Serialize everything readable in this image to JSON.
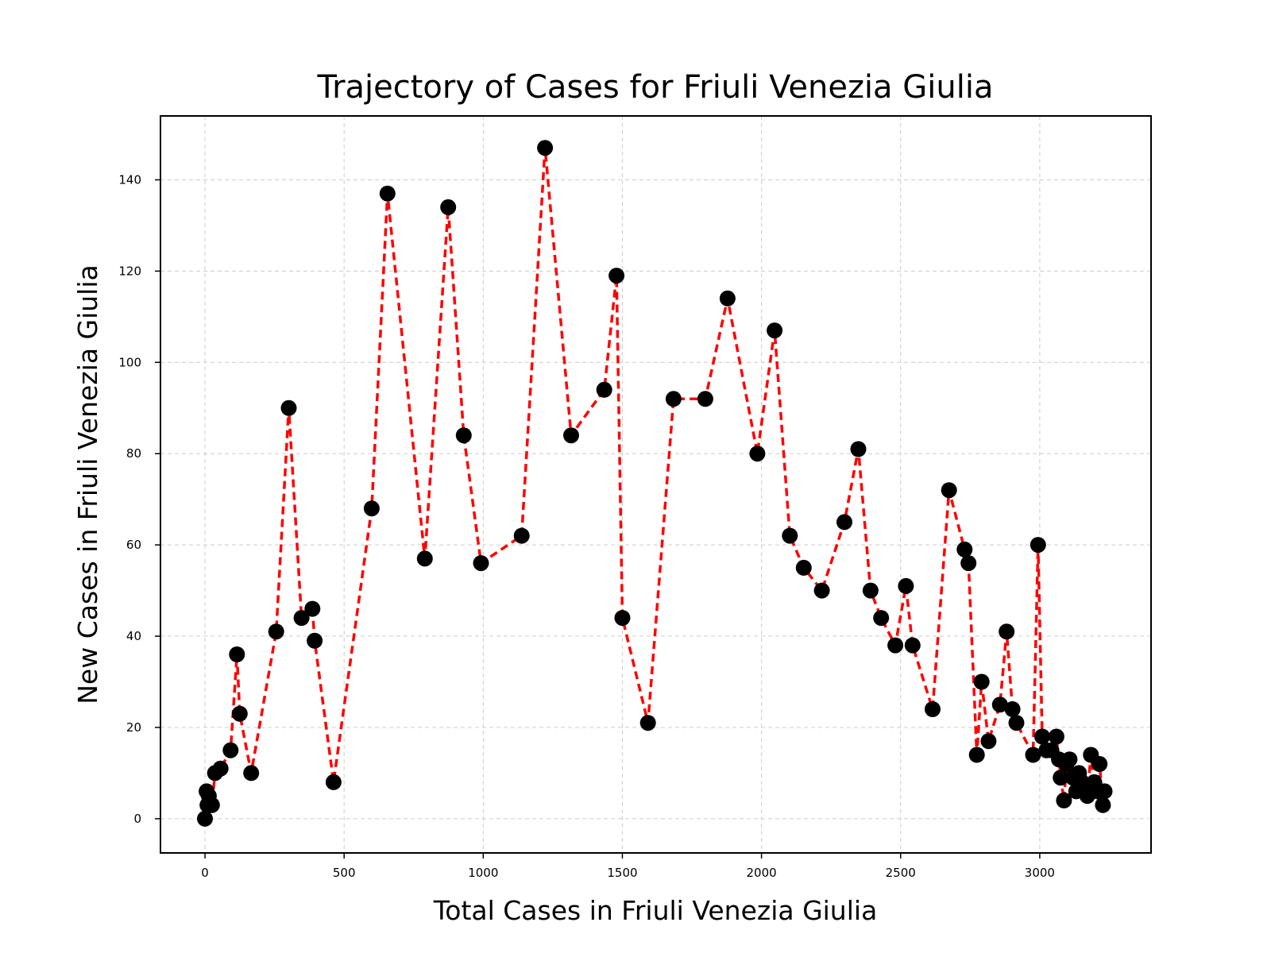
{
  "chart_data": {
    "type": "line",
    "title": "Trajectory of Cases for Friuli Venezia Giulia",
    "xlabel": "Total Cases in Friuli Venezia Giulia",
    "ylabel": "New Cases in Friuli Venezia Giulia",
    "xlim": [
      -160,
      3400
    ],
    "ylim": [
      -7.5,
      154
    ],
    "xticks": [
      0,
      500,
      1000,
      1500,
      2000,
      2500,
      3000
    ],
    "yticks": [
      0,
      20,
      40,
      60,
      80,
      100,
      120,
      140
    ],
    "grid": true,
    "line_color": "#ff0000",
    "line_style": "dashed",
    "marker_color": "#000000",
    "x": [
      0,
      6,
      9,
      14,
      25,
      36,
      56,
      92,
      115,
      125,
      166,
      256,
      301,
      347,
      386,
      394,
      462,
      599,
      656,
      790,
      874,
      930,
      992,
      1138,
      1222,
      1316,
      1435,
      1479,
      1500,
      1592,
      1684,
      1798,
      1878,
      1985,
      2047,
      2102,
      2152,
      2217,
      2298,
      2348,
      2392,
      2430,
      2481,
      2519,
      2543,
      2615,
      2674,
      2730,
      2744,
      2774,
      2791,
      2816,
      2857,
      2881,
      2902,
      2916,
      2976,
      2994,
      3009,
      3024,
      3042,
      3060,
      3069,
      3075,
      3087,
      3096,
      3107,
      3119,
      3131,
      3141,
      3152,
      3166,
      3171,
      3184,
      3196,
      3208,
      3215,
      3227,
      3233
    ],
    "y": [
      0,
      6,
      3,
      5,
      3,
      10,
      11,
      15,
      36,
      23,
      10,
      41,
      90,
      44,
      46,
      39,
      8,
      68,
      137,
      57,
      134,
      84,
      56,
      62,
      147,
      84,
      94,
      119,
      44,
      21,
      92,
      92,
      114,
      80,
      107,
      62,
      55,
      50,
      65,
      81,
      50,
      44,
      38,
      51,
      38,
      24,
      72,
      59,
      56,
      14,
      30,
      17,
      25,
      41,
      24,
      21,
      14,
      60,
      18,
      15,
      15,
      18,
      13,
      9,
      4,
      12,
      13,
      9,
      6,
      10,
      8,
      6,
      5,
      14,
      8,
      6,
      12,
      3,
      6
    ]
  }
}
